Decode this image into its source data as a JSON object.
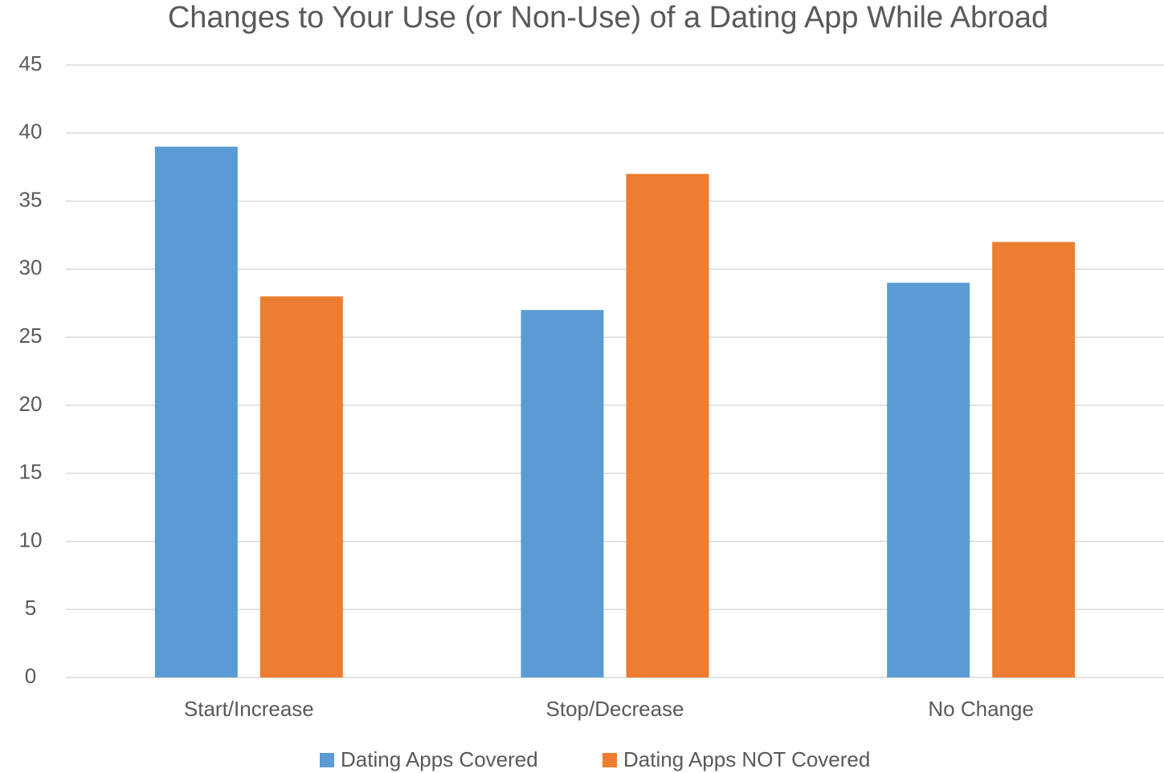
{
  "chart_data": {
    "type": "bar",
    "title": "Changes to Your Use (or Non-Use) of a Dating App While Abroad",
    "categories": [
      "Start/Increase",
      "Stop/Decrease",
      "No Change"
    ],
    "series": [
      {
        "name": "Dating Apps Covered",
        "color": "#5b9bd5",
        "values": [
          39,
          27,
          29
        ]
      },
      {
        "name": "Dating Apps NOT Covered",
        "color": "#ed7d31",
        "values": [
          28,
          37,
          32
        ]
      }
    ],
    "ylim": [
      0,
      45
    ],
    "yticks": [
      0,
      5,
      10,
      15,
      20,
      25,
      30,
      35,
      40,
      45
    ],
    "grid": true,
    "legend": "bottom"
  }
}
